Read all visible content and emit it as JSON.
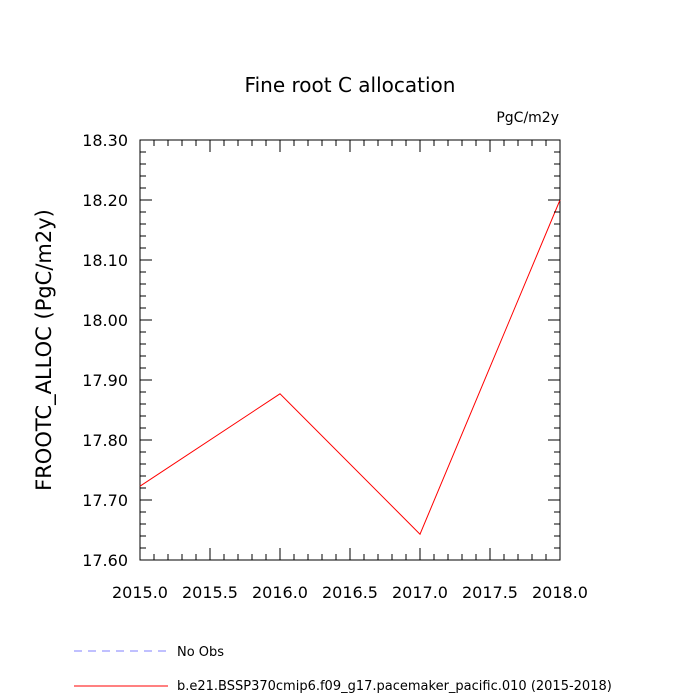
{
  "chart_data": {
    "type": "line",
    "title": "Fine root C allocation",
    "units": "PgC/m2y",
    "ylabel": "FROOTC_ALLOC  (PgC/m2y)",
    "xlabel": "",
    "xlim": [
      2015.0,
      2018.0
    ],
    "ylim": [
      17.6,
      18.3
    ],
    "x_ticks": [
      "2015.0",
      "2015.5",
      "2016.0",
      "2016.5",
      "2017.0",
      "2017.5",
      "2018.0"
    ],
    "y_ticks": [
      "17.60",
      "17.70",
      "17.80",
      "17.90",
      "18.00",
      "18.10",
      "18.20",
      "18.30"
    ],
    "grid": false,
    "legend_position": "bottom",
    "series": [
      {
        "name": "b.e21.BSSP370cmip6.f09_g17.pacemaker_pacific.010 (2015-2018)",
        "color": "#ff0000",
        "style": "solid",
        "x": [
          2015,
          2016,
          2017,
          2018
        ],
        "y": [
          17.723,
          17.877,
          17.643,
          18.2
        ]
      }
    ],
    "legend": [
      {
        "label": "No Obs",
        "color": "#8080ff",
        "style": "dashed"
      },
      {
        "label": "b.e21.BSSP370cmip6.f09_g17.pacemaker_pacific.010 (2015-2018)",
        "color": "#ff0000",
        "style": "solid"
      }
    ]
  }
}
